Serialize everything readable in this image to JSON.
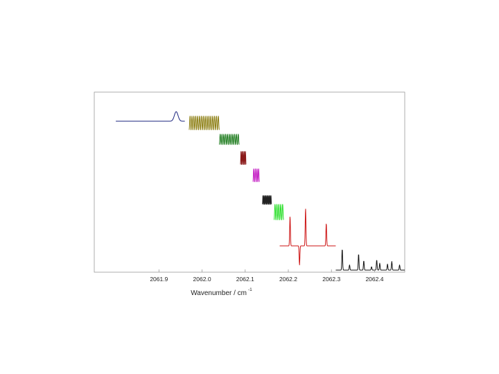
{
  "chart_data": {
    "type": "line",
    "xlabel": "Wavenumber / cm",
    "xlabel_superscript": "-1",
    "xlim": [
      2061.75,
      2062.47
    ],
    "x_ticks": [
      "2061.9",
      "2062.0",
      "2062.1",
      "2062.2",
      "2062.3",
      "2062.4"
    ],
    "grid": false,
    "legend": "none",
    "series": [
      {
        "color": "#1a237e",
        "kind": "plateau-peak",
        "x_start": 2061.8,
        "x_end": 2061.96,
        "baseline": 0.86,
        "peak_x": 2061.94,
        "peak_height": 0.915
      },
      {
        "color": "#8b7d10",
        "kind": "oscillation",
        "x_start": 2061.97,
        "x_end": 2062.04,
        "low": 0.81,
        "high": 0.89,
        "cycles": 16
      },
      {
        "color": "#1b7a1b",
        "kind": "oscillation",
        "x_start": 2062.04,
        "x_end": 2062.086,
        "low": 0.725,
        "high": 0.785,
        "cycles": 11
      },
      {
        "color": "#8b1a1a",
        "kind": "oscillation",
        "x_start": 2062.089,
        "x_end": 2062.102,
        "low": 0.61,
        "high": 0.685,
        "cycles": 5
      },
      {
        "color": "#c218c2",
        "kind": "oscillation",
        "x_start": 2062.118,
        "x_end": 2062.133,
        "low": 0.51,
        "high": 0.585,
        "cycles": 4
      },
      {
        "color": "#222222",
        "kind": "oscillation",
        "x_start": 2062.14,
        "x_end": 2062.161,
        "low": 0.38,
        "high": 0.43,
        "cycles": 9
      },
      {
        "color": "#22dd22",
        "kind": "oscillation",
        "x_start": 2062.167,
        "x_end": 2062.189,
        "low": 0.29,
        "high": 0.38,
        "cycles": 5
      },
      {
        "color": "#cc1111",
        "kind": "peaks",
        "x_start": 2062.18,
        "x_end": 2062.31,
        "baseline": 0.14,
        "peaks": [
          [
            2062.204,
            0.31
          ],
          [
            2062.226,
            0.03
          ],
          [
            2062.24,
            0.355
          ],
          [
            2062.288,
            0.27
          ]
        ]
      },
      {
        "color": "#111111",
        "kind": "peaks",
        "x_start": 2062.31,
        "x_end": 2062.47,
        "baseline": 0.0,
        "peaks": [
          [
            2062.325,
            0.125
          ],
          [
            2062.342,
            0.03
          ],
          [
            2062.363,
            0.095
          ],
          [
            2062.375,
            0.055
          ],
          [
            2062.393,
            0.02
          ],
          [
            2062.405,
            0.06
          ],
          [
            2062.412,
            0.04
          ],
          [
            2062.43,
            0.035
          ],
          [
            2062.44,
            0.05
          ],
          [
            2062.458,
            0.03
          ]
        ]
      }
    ]
  }
}
